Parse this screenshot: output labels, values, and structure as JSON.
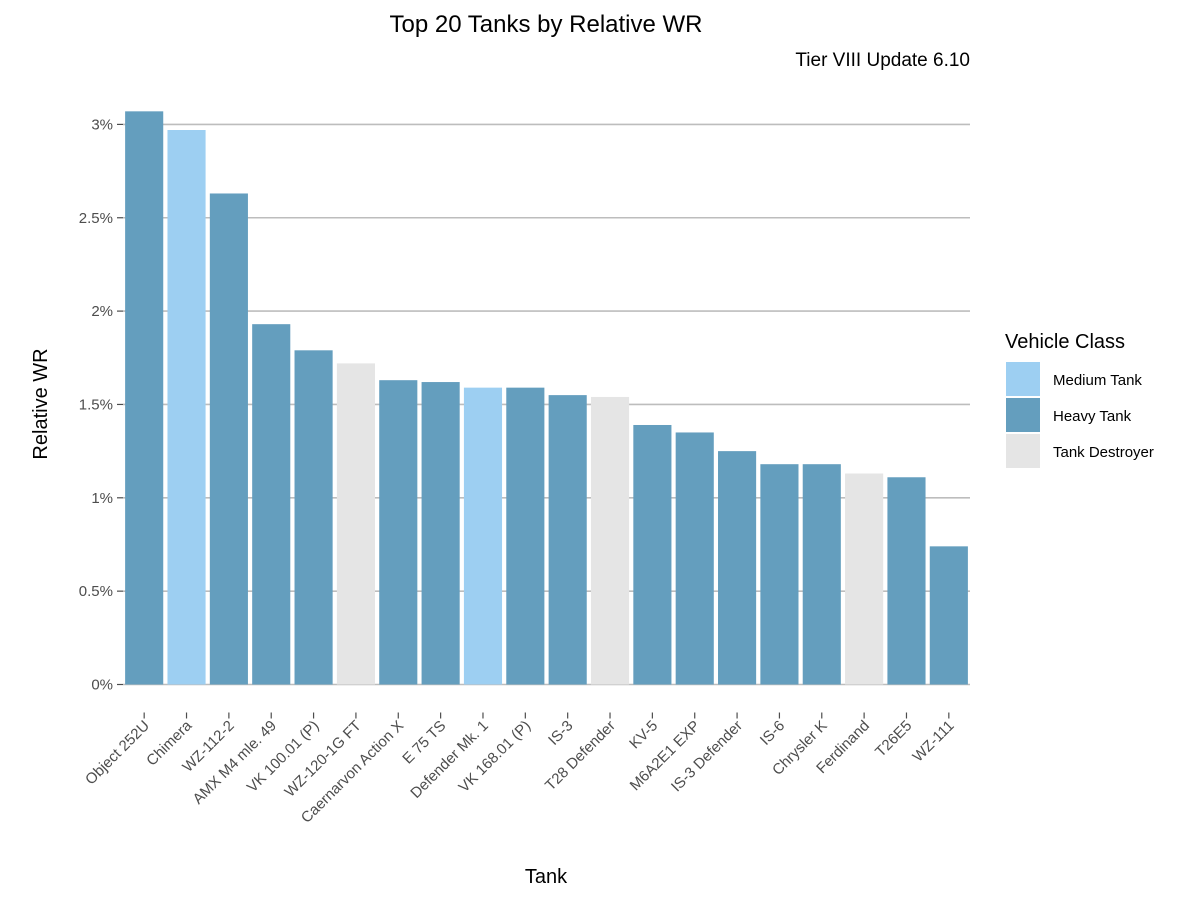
{
  "chart_data": {
    "type": "bar",
    "title": "Top 20 Tanks by Relative WR",
    "subtitle": "Tier VIII Update 6.10",
    "xlabel": "Tank",
    "ylabel": "Relative WR",
    "ylim": [
      0,
      3.2
    ],
    "yticks": [
      0,
      0.5,
      1,
      1.5,
      2,
      2.5,
      3
    ],
    "ytick_labels": [
      "0%",
      "0.5%",
      "1%",
      "1.5%",
      "2%",
      "2.5%",
      "3%"
    ],
    "grid": "horizontal",
    "legend_position": "right",
    "legend": {
      "title": "Vehicle Class",
      "entries": [
        {
          "name": "Medium Tank",
          "color": "#9dcff2"
        },
        {
          "name": "Heavy Tank",
          "color": "#649ebe"
        },
        {
          "name": "Tank Destroyer",
          "color": "#e5e5e5"
        }
      ]
    },
    "categories": [
      "Object 252U",
      "Chimera",
      "WZ-112-2",
      "AMX M4 mle. 49",
      "VK 100.01 (P)",
      "WZ-120-1G FT",
      "Caernarvon Action X",
      "E 75 TS",
      "Defender Mk. 1",
      "VK 168.01 (P)",
      "IS-3",
      "T28 Defender",
      "KV-5",
      "M6A2E1 EXP",
      "IS-3 Defender",
      "IS-6",
      "Chrysler K",
      "Ferdinand",
      "T26E5",
      "WZ-111"
    ],
    "values": [
      3.07,
      2.97,
      2.63,
      1.93,
      1.79,
      1.72,
      1.63,
      1.62,
      1.59,
      1.59,
      1.55,
      1.54,
      1.39,
      1.35,
      1.25,
      1.18,
      1.18,
      1.13,
      1.11,
      0.74
    ],
    "classes": [
      "Heavy Tank",
      "Medium Tank",
      "Heavy Tank",
      "Heavy Tank",
      "Heavy Tank",
      "Tank Destroyer",
      "Heavy Tank",
      "Heavy Tank",
      "Medium Tank",
      "Heavy Tank",
      "Heavy Tank",
      "Tank Destroyer",
      "Heavy Tank",
      "Heavy Tank",
      "Heavy Tank",
      "Heavy Tank",
      "Heavy Tank",
      "Tank Destroyer",
      "Heavy Tank",
      "Heavy Tank"
    ]
  }
}
